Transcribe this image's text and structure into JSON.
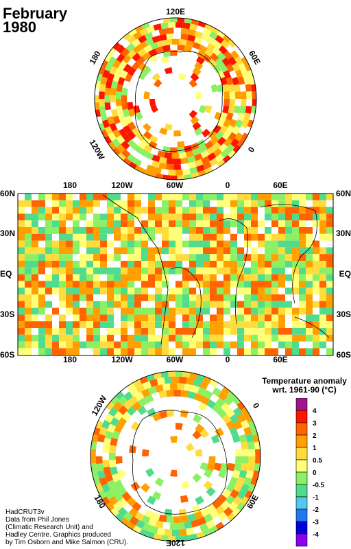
{
  "title": {
    "month": "February",
    "year": "1980"
  },
  "north_map": {
    "labels": [
      "120E",
      "60E",
      "0",
      "120W",
      "180"
    ]
  },
  "world_map": {
    "x_labels": [
      "180",
      "120W",
      "60W",
      "0",
      "60E"
    ],
    "y_labels": [
      "60N",
      "30N",
      "EQ",
      "30S",
      "60S"
    ]
  },
  "south_map": {
    "labels": [
      "120W",
      "0",
      "180",
      "60E",
      "120E"
    ]
  },
  "legend": {
    "title_line1": "Temperature anomaly",
    "title_line2": "wrt. 1961-90  (°C)",
    "ticks": [
      "4",
      "3",
      "2",
      "1",
      "0.5",
      "0",
      "-0.5",
      "-1",
      "-2",
      "-3",
      "-4"
    ],
    "colors": [
      "#a0148c",
      "#ff1400",
      "#ff6400",
      "#ffa000",
      "#ffdc3c",
      "#ffff78",
      "#8cf064",
      "#50dc8c",
      "#50c8f0",
      "#1e78f0",
      "#0000dc",
      "#8c00f0"
    ]
  },
  "credits": [
    "HadCRUT3v",
    "Data from Phil Jones",
    "(Climatic Research Unit) and",
    "Hadley Centre.  Graphics produced",
    "by Tim Osborn and Mike Salmon (CRU)."
  ]
}
